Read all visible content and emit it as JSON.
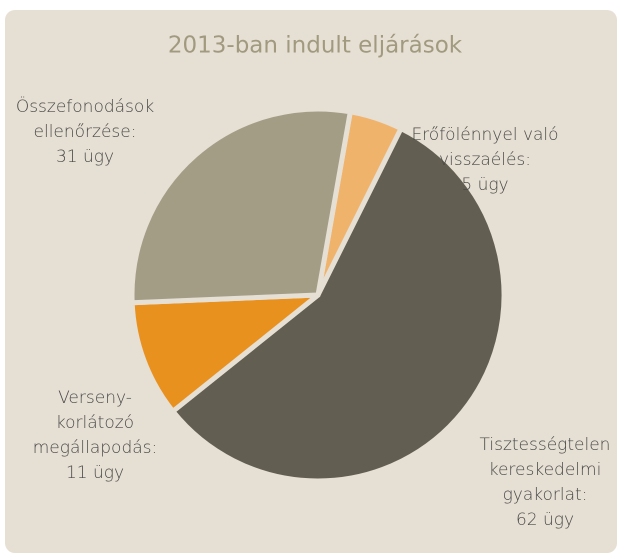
{
  "chart_data": {
    "type": "pie",
    "title": "2013-ban indult eljárások",
    "categories": [
      [
        "Erőfölénnyel való",
        "visszaélés:"
      ],
      [
        "Tisztességtelen",
        "kereskedelmi",
        "gyakorlat:"
      ],
      [
        "Verseny-",
        "korlátozó",
        "megállapodás:"
      ],
      [
        "Összefonodások",
        "ellenőrzése:"
      ]
    ],
    "values": [
      5,
      62,
      11,
      31
    ],
    "value_labels": [
      "5 ügy",
      "62 ügy",
      "11 ügy",
      "31 ügy"
    ],
    "colors": [
      "#f0b36c",
      "#625e51",
      "#e8911f",
      "#a39d86"
    ]
  }
}
